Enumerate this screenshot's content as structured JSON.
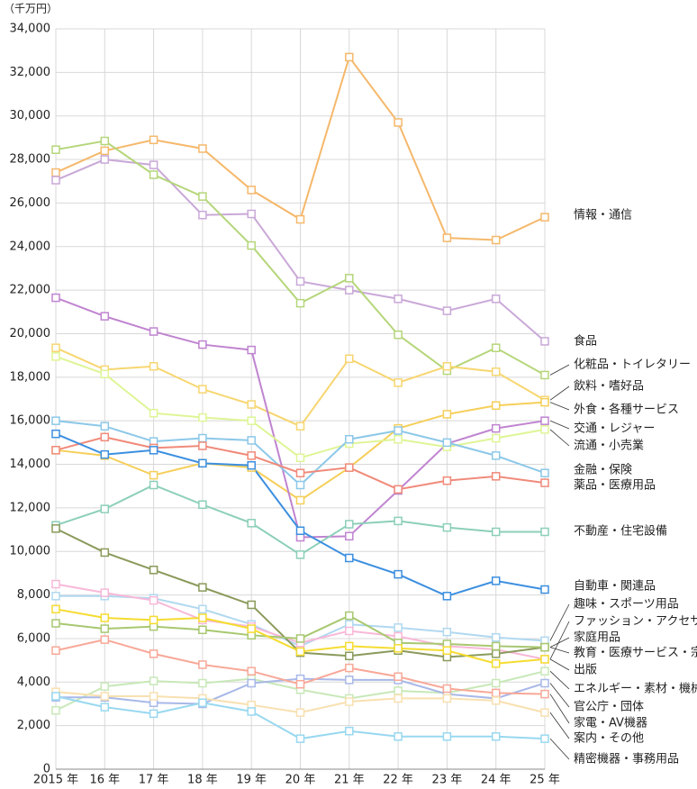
{
  "chart_data": {
    "type": "line",
    "unit_label": "（千万円）",
    "categories": [
      "2015 年",
      "16 年",
      "17 年",
      "18 年",
      "19 年",
      "20 年",
      "21 年",
      "22 年",
      "23 年",
      "24 年",
      "25 年"
    ],
    "ylim": [
      0,
      34000
    ],
    "yticks": [
      0,
      {
        "value": 2000,
        "label": "2,000"
      },
      {
        "value": 4000,
        "label": "4,000"
      },
      {
        "value": 6000,
        "label": "6,000"
      },
      {
        "value": 8000,
        "label": "8,000"
      },
      {
        "value": 10000,
        "label": "10,000"
      },
      {
        "value": 12000,
        "label": "12,000"
      },
      {
        "value": 14000,
        "label": "14,000"
      },
      {
        "value": 16000,
        "label": "16,000"
      },
      {
        "value": 18000,
        "label": "18,000"
      },
      {
        "value": 20000,
        "label": "20,000"
      },
      {
        "value": 22000,
        "label": "22,000"
      },
      {
        "value": 24000,
        "label": "24,000"
      },
      {
        "value": 26000,
        "label": "26,000"
      },
      {
        "value": 28000,
        "label": "28,000"
      },
      {
        "value": 30000,
        "label": "30,000"
      },
      {
        "value": 32000,
        "label": "32,000"
      },
      {
        "value": 34000,
        "label": "34,000"
      }
    ],
    "grid": true,
    "series": [
      {
        "name": "情報・通信",
        "color": "#f5b86b",
        "values": [
          27400,
          28400,
          28900,
          28500,
          26600,
          25250,
          32700,
          29700,
          24400,
          24300,
          25350
        ]
      },
      {
        "name": "食品",
        "color": "#c9a8d8",
        "values": [
          27050,
          28000,
          27750,
          25450,
          25500,
          22400,
          22000,
          21600,
          21050,
          21600,
          19650
        ]
      },
      {
        "name": "化粧品・トイレタリー",
        "color": "#b5d67a",
        "values": [
          28450,
          28850,
          27300,
          26300,
          24050,
          21400,
          22550,
          19950,
          18300,
          19350,
          18100
        ]
      },
      {
        "name": "飲料・嗜好品",
        "color": "#f7d670",
        "values": [
          19350,
          18350,
          18500,
          17450,
          16750,
          15750,
          18850,
          17750,
          18500,
          18250,
          16950
        ]
      },
      {
        "name": "外食・各種サービス",
        "color": "#f5cf5a",
        "values": [
          14650,
          14400,
          13500,
          14050,
          13850,
          12350,
          13850,
          15650,
          16300,
          16700,
          16850
        ]
      },
      {
        "name": "交通・レジャー",
        "color": "#c084d0",
        "values": [
          21650,
          20800,
          20100,
          19500,
          19250,
          10650,
          10700,
          12800,
          14950,
          15650,
          16000
        ]
      },
      {
        "name": "流通・小売業",
        "color": "#def595",
        "values": [
          18950,
          18150,
          16350,
          16150,
          16000,
          14300,
          14950,
          15150,
          14800,
          15200,
          15600
        ]
      },
      {
        "name": "金融・保険",
        "color": "#8cc8e8",
        "values": [
          16000,
          15750,
          15050,
          15200,
          15100,
          13050,
          15150,
          15550,
          15000,
          14400,
          13600
        ]
      },
      {
        "name": "薬品・医療用品",
        "color": "#f08a7a",
        "values": [
          14650,
          15250,
          14750,
          14850,
          14400,
          13600,
          13850,
          12850,
          13250,
          13450,
          13150
        ]
      },
      {
        "name": "不動産・住宅設備",
        "color": "#8ccfb9",
        "values": [
          11200,
          11950,
          13050,
          12150,
          11300,
          9850,
          11250,
          11400,
          11100,
          10900,
          10900
        ]
      },
      {
        "name": "自動車・関連品",
        "color": "#3c8fe0",
        "values": [
          15400,
          14450,
          14650,
          14050,
          13950,
          10950,
          9700,
          8950,
          7950,
          8650,
          8250
        ]
      },
      {
        "name": "趣味・スポーツ用品",
        "color": "#b0d8f0",
        "values": [
          7950,
          7950,
          7850,
          7350,
          6650,
          5650,
          6650,
          6500,
          6300,
          6050,
          5900
        ]
      },
      {
        "name": "ファッション・アクセサリー",
        "color": "#f8b8d8",
        "values": [
          8500,
          8100,
          7750,
          6850,
          6550,
          5800,
          6350,
          6100,
          5650,
          5500,
          5050
        ]
      },
      {
        "name": "家庭用品",
        "color": "#8a9a5b",
        "values": [
          11050,
          9950,
          9150,
          8350,
          7550,
          5350,
          5200,
          5450,
          5150,
          5300,
          5600
        ]
      },
      {
        "name": "教育・医療サービス・宗教",
        "color": "#a8c870",
        "values": [
          6700,
          6450,
          6550,
          6400,
          6150,
          6000,
          7050,
          5800,
          5750,
          5650,
          5600
        ]
      },
      {
        "name": "出版",
        "color": "#f5dc30",
        "values": [
          7350,
          6950,
          6850,
          6950,
          6450,
          5400,
          5650,
          5550,
          5450,
          4850,
          5050
        ]
      },
      {
        "name": "エネルギー・素材・機械",
        "color": "#c8e8b8",
        "values": [
          2700,
          3800,
          4050,
          3950,
          4150,
          3650,
          3250,
          3600,
          3500,
          3950,
          4500
        ]
      },
      {
        "name": "官公庁・団体",
        "color": "#a8b8e8",
        "values": [
          3300,
          3300,
          3050,
          3000,
          3950,
          4150,
          4100,
          4100,
          3450,
          3250,
          3950
        ]
      },
      {
        "name": "家電・AV機器",
        "color": "#f8a898",
        "values": [
          5450,
          5950,
          5300,
          4800,
          4500,
          3900,
          4650,
          4250,
          3700,
          3500,
          3450
        ]
      },
      {
        "name": "案内・その他",
        "color": "#f8e0b0",
        "values": [
          3550,
          3350,
          3350,
          3250,
          2950,
          2600,
          3100,
          3250,
          3250,
          3150,
          2600
        ]
      },
      {
        "name": "精密機器・事務用品",
        "color": "#98d8f0",
        "values": [
          3350,
          2850,
          2550,
          3050,
          2650,
          1400,
          1750,
          1500,
          1500,
          1500,
          1400
        ]
      }
    ]
  }
}
